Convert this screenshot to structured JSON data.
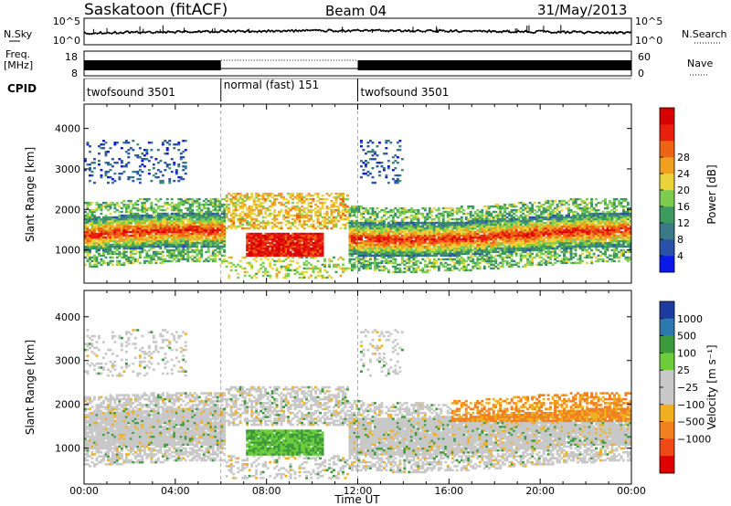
{
  "header": {
    "station": "Saskatoon (fitACF)",
    "beam": "Beam 04",
    "date": "31/May/2013"
  },
  "chart_data": [
    {
      "type": "line",
      "panel": "noise",
      "left_label": "N.Sky",
      "right_label": "N.Search",
      "left_ticks": [
        "10^5",
        "10^0"
      ],
      "right_ticks": [
        "10^5",
        "10^0"
      ]
    },
    {
      "type": "line",
      "panel": "frequency",
      "left_label_line1": "Freq.",
      "left_label_line2": "[MHz]",
      "right_label": "Nave",
      "left_ticks": [
        "18",
        "8"
      ],
      "right_ticks": [
        "60",
        "0"
      ],
      "mode_segments": [
        {
          "start_h": 0,
          "end_h": 6,
          "style": "solid"
        },
        {
          "start_h": 6,
          "end_h": 12,
          "style": "dotted"
        },
        {
          "start_h": 12,
          "end_h": 24,
          "style": "solid"
        }
      ]
    },
    {
      "type": "table",
      "panel": "cpid",
      "label": "CPID",
      "segments": [
        {
          "start_h": 0,
          "end_h": 6,
          "text": "twofsound 3501"
        },
        {
          "start_h": 6,
          "end_h": 12,
          "text": "normal (fast) 151"
        },
        {
          "start_h": 12,
          "end_h": 24,
          "text": "twofsound 3501"
        }
      ]
    },
    {
      "type": "heatmap",
      "panel": "power",
      "ylabel": "Slant Range [km]",
      "ylim": [
        180,
        4600
      ],
      "yticks": [
        "1000",
        "2000",
        "3000",
        "4000"
      ],
      "xlim": [
        0,
        24
      ],
      "colorbar_label": "Power [dB]",
      "colorbar_ticks": [
        "4",
        "8",
        "12",
        "16",
        "20",
        "24",
        "28"
      ],
      "colors": [
        "#0a18e8",
        "#2a52a8",
        "#3a7a86",
        "#3e9a5e",
        "#7ccc52",
        "#e8d43a",
        "#f0a020",
        "#ec6414",
        "#e81e0e",
        "#d80000"
      ]
    },
    {
      "type": "heatmap",
      "panel": "velocity",
      "ylabel": "Slant Range [km]",
      "ylim": [
        180,
        4600
      ],
      "yticks": [
        "1000",
        "2000",
        "3000",
        "4000"
      ],
      "xlim": [
        0,
        24
      ],
      "xticks": [
        "00:00",
        "04:00",
        "08:00",
        "12:00",
        "16:00",
        "20:00",
        "00:00"
      ],
      "xlabel": "Time UT",
      "colorbar_label": "Velocity [m s⁻¹]",
      "colorbar_ticks": [
        "1000",
        "500",
        "100",
        "25",
        "−25",
        "−100",
        "−500",
        "−1000"
      ],
      "colors": [
        "#1e3ca0",
        "#2e78b0",
        "#3c9a3c",
        "#6ccc3c",
        "#c8c8c8",
        "#c8c8c8",
        "#f0b020",
        "#f08020",
        "#f04818",
        "#e00000"
      ]
    }
  ]
}
